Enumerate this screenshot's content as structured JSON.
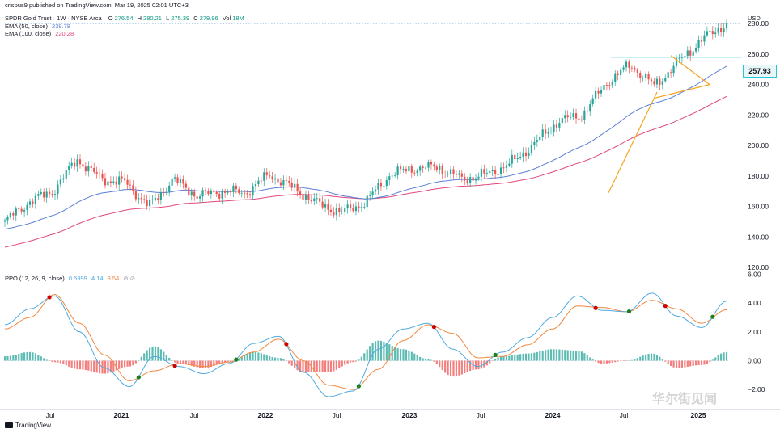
{
  "publisher_line": "crispus9 published on TradingView.com, Mar 19, 2025 02:01 UTC+3",
  "symbol_line": {
    "name": "SPDR Gold Trust · 1W · NYSE Arca",
    "o_label": "O",
    "o_value": "276.54",
    "h_label": "H",
    "h_value": "280.21",
    "l_label": "L",
    "l_value": "275.39",
    "c_label": "C",
    "c_value": "279.96",
    "vol_label": "Vol",
    "vol_value": "18M"
  },
  "ema50_line": {
    "label": "EMA (50, close)",
    "value": "239.78"
  },
  "ema100_line": {
    "label": "EMA (100, close)",
    "value": "220.28"
  },
  "ppo_line": {
    "label": "PPO (12, 26, 9, close)",
    "v1": "0.5999",
    "v2": "4.14",
    "v3": "3.54"
  },
  "currency": "USD",
  "price_badge": "257.93",
  "footer_brand": "TradingView",
  "watermark": "华尔街见闻",
  "colors": {
    "up": "#26a69a",
    "down": "#ef5350",
    "ema50": "#5b7fd6",
    "ema100": "#e0487a",
    "ppo": "#4fa9de",
    "signal": "#f0883e",
    "pattern": "#f4a623",
    "resistance": "#26c6da"
  },
  "chart_data": [
    {
      "type": "candlestick",
      "title": "SPDR Gold Trust · 1W · NYSE Arca",
      "x_tick_labels": [
        "Jul",
        "2021",
        "Jul",
        "2022",
        "Jul",
        "2023",
        "Jul",
        "2024",
        "Jul",
        "2025"
      ],
      "y_ticks": [
        120,
        140,
        160,
        180,
        200,
        220,
        240,
        260,
        280
      ],
      "ylim": [
        118,
        288
      ],
      "price_reference_line": 280,
      "resistance_level": 257.93,
      "weekly_close_approx": [
        {
          "x": "2020-03",
          "close": 150
        },
        {
          "x": "2020-05",
          "close": 163
        },
        {
          "x": "2020-07",
          "close": 170
        },
        {
          "x": "2020-08",
          "close": 191
        },
        {
          "x": "2020-10",
          "close": 178
        },
        {
          "x": "2020-12",
          "close": 176
        },
        {
          "x": "2021-03",
          "close": 160
        },
        {
          "x": "2021-05",
          "close": 178
        },
        {
          "x": "2021-08",
          "close": 167
        },
        {
          "x": "2021-11",
          "close": 170
        },
        {
          "x": "2022-01",
          "close": 169
        },
        {
          "x": "2022-03",
          "close": 181
        },
        {
          "x": "2022-05",
          "close": 172
        },
        {
          "x": "2022-07",
          "close": 162
        },
        {
          "x": "2022-09",
          "close": 156
        },
        {
          "x": "2022-11",
          "close": 163
        },
        {
          "x": "2023-01",
          "close": 181
        },
        {
          "x": "2023-03",
          "close": 185
        },
        {
          "x": "2023-05",
          "close": 186
        },
        {
          "x": "2023-08",
          "close": 178
        },
        {
          "x": "2023-10",
          "close": 181
        },
        {
          "x": "2023-12",
          "close": 188
        },
        {
          "x": "2024-03",
          "close": 201
        },
        {
          "x": "2024-05",
          "close": 216
        },
        {
          "x": "2024-07",
          "close": 220
        },
        {
          "x": "2024-09",
          "close": 241
        },
        {
          "x": "2024-10",
          "close": 253
        },
        {
          "x": "2024-12",
          "close": 239
        },
        {
          "x": "2025-01",
          "close": 255
        },
        {
          "x": "2025-02",
          "close": 270
        },
        {
          "x": "2025-03",
          "close": 279.96
        }
      ]
    },
    {
      "type": "line",
      "title": "PPO (12, 26, 9, close)",
      "y_ticks": [
        -2.0,
        0.0,
        2.0,
        4.0,
        6.0
      ],
      "ylim": [
        -3.0,
        6.2
      ],
      "series": [
        {
          "name": "PPO",
          "values_approx": [
            2.5,
            3.6,
            4.5,
            2.0,
            -0.5,
            -1.8,
            0.3,
            -0.4,
            -0.9,
            -0.2,
            1.2,
            1.7,
            -0.8,
            -2.5,
            -2.1,
            0.8,
            2.2,
            2.6,
            0.8,
            -0.4,
            0.6,
            1.6,
            3.0,
            4.5,
            3.5,
            3.4,
            4.7,
            3.1,
            2.3,
            4.14
          ]
        },
        {
          "name": "Signal",
          "values_approx": [
            2.2,
            3.0,
            4.6,
            2.6,
            0.4,
            -1.4,
            -0.7,
            -0.2,
            -0.4,
            -0.1,
            0.6,
            1.5,
            0.0,
            -1.7,
            -2.0,
            -0.6,
            1.4,
            2.5,
            1.9,
            0.2,
            0.3,
            1.1,
            2.2,
            3.8,
            3.7,
            3.4,
            4.2,
            3.6,
            2.6,
            3.54
          ]
        }
      ],
      "histogram_sign": "positive bars teal, negative bars red"
    }
  ]
}
